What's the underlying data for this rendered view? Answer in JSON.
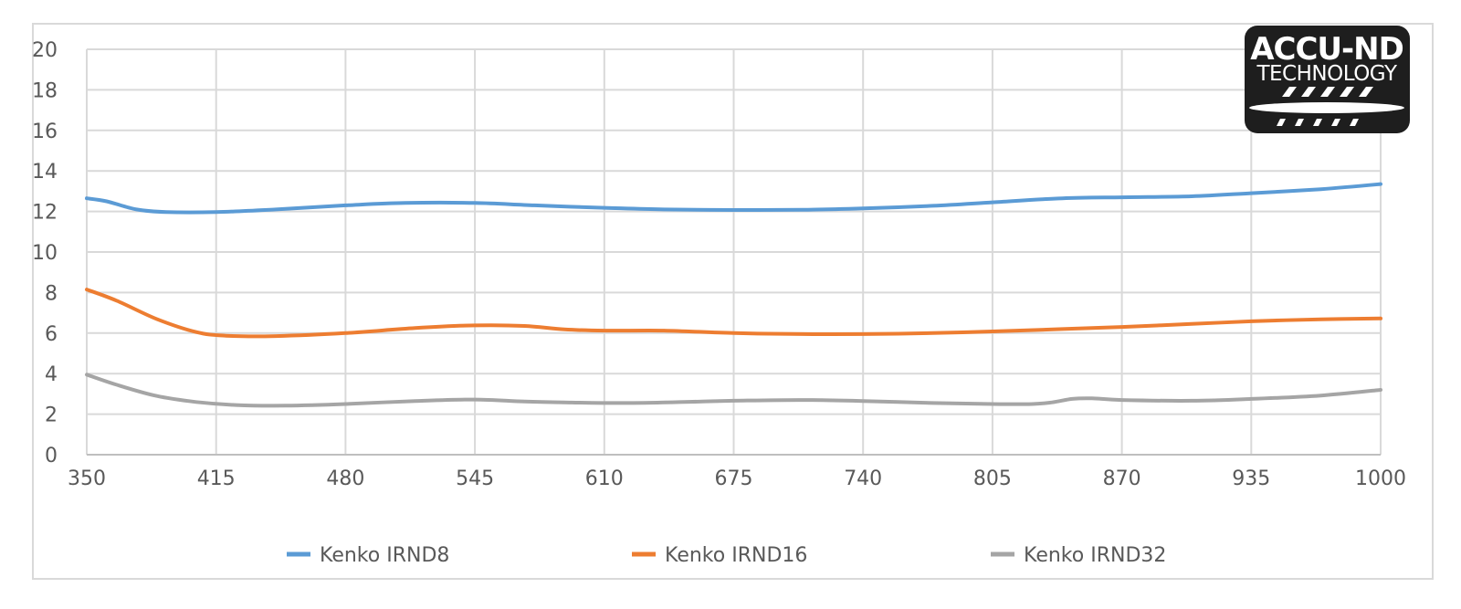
{
  "badge": {
    "line1": "ACCU-ND",
    "line2": "TECHNOLOGY"
  },
  "chart_data": {
    "type": "line",
    "title": "",
    "xlabel": "",
    "ylabel": "",
    "xlim": [
      350,
      1000
    ],
    "ylim": [
      0,
      20
    ],
    "x_ticks": [
      350,
      415,
      480,
      545,
      610,
      675,
      740,
      805,
      870,
      935,
      1000
    ],
    "y_ticks": [
      0,
      2,
      4,
      6,
      8,
      10,
      12,
      14,
      16,
      18,
      20
    ],
    "grid": true,
    "legend_position": "bottom",
    "series": [
      {
        "name": "Kenko IRND8",
        "color": "#5b9bd5",
        "points": [
          [
            350,
            12.65
          ],
          [
            360,
            12.5
          ],
          [
            375,
            12.1
          ],
          [
            390,
            11.97
          ],
          [
            415,
            11.97
          ],
          [
            445,
            12.1
          ],
          [
            480,
            12.3
          ],
          [
            510,
            12.42
          ],
          [
            545,
            12.42
          ],
          [
            575,
            12.3
          ],
          [
            610,
            12.18
          ],
          [
            640,
            12.1
          ],
          [
            675,
            12.07
          ],
          [
            710,
            12.08
          ],
          [
            740,
            12.15
          ],
          [
            775,
            12.28
          ],
          [
            805,
            12.45
          ],
          [
            840,
            12.65
          ],
          [
            870,
            12.7
          ],
          [
            905,
            12.75
          ],
          [
            935,
            12.9
          ],
          [
            970,
            13.1
          ],
          [
            1000,
            13.35
          ]
        ]
      },
      {
        "name": "Kenko IRND16",
        "color": "#ed7d31",
        "points": [
          [
            350,
            8.15
          ],
          [
            365,
            7.6
          ],
          [
            385,
            6.7
          ],
          [
            405,
            6.05
          ],
          [
            420,
            5.87
          ],
          [
            445,
            5.85
          ],
          [
            480,
            6.0
          ],
          [
            515,
            6.25
          ],
          [
            545,
            6.38
          ],
          [
            570,
            6.35
          ],
          [
            590,
            6.18
          ],
          [
            610,
            6.12
          ],
          [
            640,
            6.12
          ],
          [
            675,
            6.0
          ],
          [
            710,
            5.95
          ],
          [
            740,
            5.95
          ],
          [
            775,
            6.0
          ],
          [
            805,
            6.08
          ],
          [
            840,
            6.2
          ],
          [
            870,
            6.3
          ],
          [
            905,
            6.45
          ],
          [
            935,
            6.58
          ],
          [
            970,
            6.68
          ],
          [
            1000,
            6.72
          ]
        ]
      },
      {
        "name": "Kenko IRND32",
        "color": "#a5a5a5",
        "points": [
          [
            350,
            3.95
          ],
          [
            365,
            3.45
          ],
          [
            385,
            2.9
          ],
          [
            405,
            2.6
          ],
          [
            425,
            2.45
          ],
          [
            450,
            2.42
          ],
          [
            480,
            2.5
          ],
          [
            515,
            2.65
          ],
          [
            545,
            2.72
          ],
          [
            570,
            2.62
          ],
          [
            590,
            2.58
          ],
          [
            620,
            2.55
          ],
          [
            650,
            2.6
          ],
          [
            675,
            2.66
          ],
          [
            710,
            2.7
          ],
          [
            740,
            2.65
          ],
          [
            775,
            2.55
          ],
          [
            805,
            2.5
          ],
          [
            825,
            2.5
          ],
          [
            835,
            2.58
          ],
          [
            845,
            2.75
          ],
          [
            855,
            2.78
          ],
          [
            870,
            2.7
          ],
          [
            905,
            2.66
          ],
          [
            935,
            2.75
          ],
          [
            970,
            2.92
          ],
          [
            1000,
            3.2
          ]
        ]
      }
    ]
  }
}
